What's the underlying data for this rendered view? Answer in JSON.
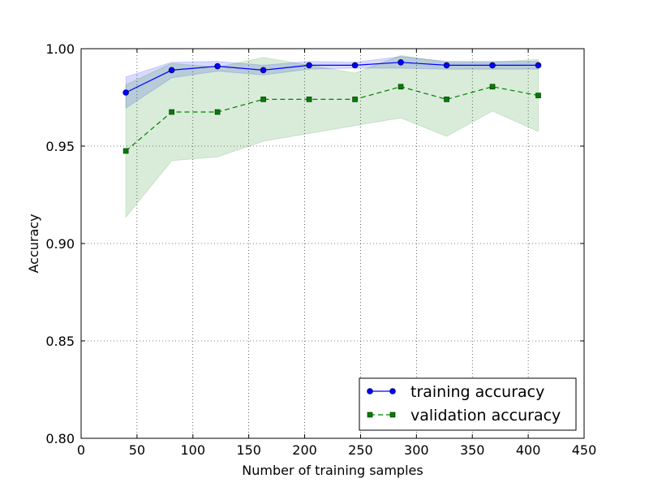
{
  "chart_data": {
    "type": "line",
    "title": "",
    "xlabel": "Number of training samples",
    "ylabel": "Accuracy",
    "xlim": [
      0,
      450
    ],
    "ylim": [
      0.8,
      1.0
    ],
    "x_ticks": [
      0,
      50,
      100,
      150,
      200,
      250,
      300,
      350,
      400,
      450
    ],
    "x_tick_labels": [
      "0",
      "50",
      "100",
      "150",
      "200",
      "250",
      "300",
      "350",
      "400",
      "450"
    ],
    "y_ticks": [
      0.8,
      0.85,
      0.9,
      0.95,
      1.0
    ],
    "y_tick_labels": [
      "0.80",
      "0.85",
      "0.90",
      "0.95",
      "1.00"
    ],
    "grid": true,
    "legend_position": "bottom-right",
    "x": [
      40,
      81,
      122,
      163,
      204,
      245,
      286,
      327,
      368,
      409
    ],
    "series": [
      {
        "name": "training accuracy",
        "color": "#0000ff",
        "band_color": "#0000ff",
        "linestyle": "solid",
        "marker": "circle",
        "values": [
          0.9775,
          0.989,
          0.991,
          0.989,
          0.9915,
          0.9915,
          0.993,
          0.9915,
          0.9915,
          0.9915
        ],
        "upper": [
          0.9855,
          0.993,
          0.9935,
          0.9915,
          0.9935,
          0.993,
          0.996,
          0.9935,
          0.9935,
          0.9935
        ],
        "lower": [
          0.9695,
          0.985,
          0.9885,
          0.9865,
          0.9895,
          0.99,
          0.99,
          0.9895,
          0.9895,
          0.9895
        ]
      },
      {
        "name": "validation accuracy",
        "color": "#007f00",
        "band_color": "#008000",
        "linestyle": "dashed",
        "marker": "square",
        "values": [
          0.9475,
          0.9675,
          0.9675,
          0.974,
          0.974,
          0.974,
          0.9805,
          0.974,
          0.9805,
          0.976
        ],
        "upper": [
          0.9815,
          0.9925,
          0.9905,
          0.9955,
          0.9915,
          0.9875,
          0.9965,
          0.993,
          0.993,
          0.9945
        ],
        "lower": [
          0.9135,
          0.9425,
          0.9445,
          0.9525,
          0.9565,
          0.9605,
          0.9645,
          0.955,
          0.968,
          0.9575
        ]
      }
    ]
  }
}
